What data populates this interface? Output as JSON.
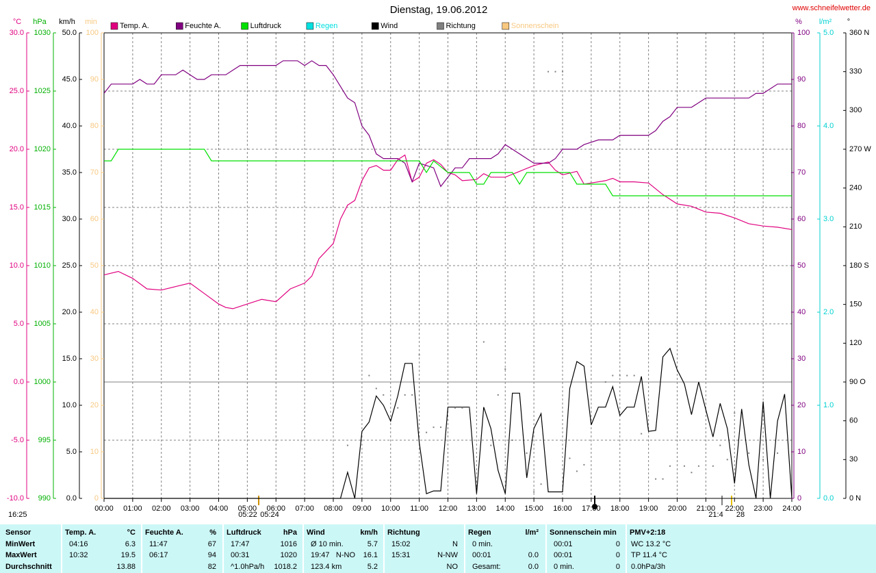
{
  "chart_data": {
    "type": "line",
    "title": "Dienstag, 19.06.2012",
    "source": "www.schneifelwetter.de",
    "grid": true,
    "xlim": [
      0,
      24
    ],
    "xticks": [
      {
        "value": 0,
        "label": "00:00"
      },
      {
        "value": 1,
        "label": "01:00"
      },
      {
        "value": 2,
        "label": "02:00"
      },
      {
        "value": 3,
        "label": "03:00"
      },
      {
        "value": 4,
        "label": "04:00"
      },
      {
        "value": 5,
        "label": "05:00"
      },
      {
        "value": 6,
        "label": "06:00"
      },
      {
        "value": 7,
        "label": "07:00"
      },
      {
        "value": 8,
        "label": "08:00"
      },
      {
        "value": 9,
        "label": "09:00"
      },
      {
        "value": 10,
        "label": "10:00"
      },
      {
        "value": 11,
        "label": "11:00"
      },
      {
        "value": 12,
        "label": "12:00"
      },
      {
        "value": 13,
        "label": "13:00"
      },
      {
        "value": 14,
        "label": "14:00"
      },
      {
        "value": 15,
        "label": "15:00"
      },
      {
        "value": 16,
        "label": "16:00"
      },
      {
        "value": 17,
        "label": "17:00"
      },
      {
        "value": 18,
        "label": "18:00"
      },
      {
        "value": 19,
        "label": "19:00"
      },
      {
        "value": 20,
        "label": "20:00"
      },
      {
        "value": 21,
        "label": "21:00"
      },
      {
        "value": 22,
        "label": "22:00"
      },
      {
        "value": 23,
        "label": "23:00"
      },
      {
        "value": 24,
        "label": "24:00"
      }
    ],
    "axes": [
      {
        "unit": "°C",
        "color": "#e0007f",
        "lim": [
          -10,
          30
        ],
        "ticks": [
          {
            "value": 30,
            "label": "30.0"
          },
          {
            "value": 25,
            "label": "25.0"
          },
          {
            "value": 20,
            "label": "20.0"
          },
          {
            "value": 15,
            "label": "15.0"
          },
          {
            "value": 10,
            "label": "10.0"
          },
          {
            "value": 5,
            "label": "5.0"
          },
          {
            "value": 0,
            "label": "0.0"
          },
          {
            "value": -5,
            "label": "-5.0"
          },
          {
            "value": -10,
            "label": "-10.0"
          }
        ]
      },
      {
        "unit": "hPa",
        "color": "#00b000",
        "lim": [
          990,
          1030
        ],
        "ticks": [
          1030,
          1025,
          1020,
          1015,
          1010,
          1005,
          1000,
          995,
          990
        ]
      },
      {
        "unit": "km/h",
        "color": "#000000",
        "lim": [
          0,
          50
        ],
        "ticks": [
          {
            "value": 50,
            "label": "50.0"
          },
          {
            "value": 45,
            "label": "45.0"
          },
          {
            "value": 40,
            "label": "40.0"
          },
          {
            "value": 35,
            "label": "35.0"
          },
          {
            "value": 30,
            "label": "30.0"
          },
          {
            "value": 25,
            "label": "25.0"
          },
          {
            "value": 20,
            "label": "20.0"
          },
          {
            "value": 15,
            "label": "15.0"
          },
          {
            "value": 10,
            "label": "10.0"
          },
          {
            "value": 5,
            "label": "5.0"
          },
          {
            "value": 0,
            "label": "0.0"
          }
        ]
      },
      {
        "unit": "min",
        "color": "#f8c880",
        "lim": [
          0,
          100
        ],
        "ticks": [
          100,
          90,
          80,
          70,
          60,
          50,
          40,
          30,
          20,
          10,
          0
        ]
      },
      {
        "unit": "%",
        "color": "#800080",
        "lim": [
          0,
          100
        ],
        "ticks": [
          100,
          90,
          80,
          70,
          60,
          50,
          40,
          30,
          20,
          10,
          0
        ]
      },
      {
        "unit": "l/m²",
        "color": "#00d0d0",
        "lim": [
          0,
          5
        ],
        "ticks": [
          {
            "value": 5,
            "label": "5.0"
          },
          {
            "value": 4,
            "label": "4.0"
          },
          {
            "value": 3,
            "label": "3.0"
          },
          {
            "value": 2,
            "label": "2.0"
          },
          {
            "value": 1,
            "label": "1.0"
          },
          {
            "value": 0,
            "label": "0.0"
          }
        ]
      },
      {
        "unit": "°",
        "color": "#000000",
        "lim": [
          0,
          360
        ],
        "ticks": [
          {
            "value": 360,
            "label": "360 N"
          },
          330,
          300,
          {
            "value": 270,
            "label": "270 W"
          },
          240,
          210,
          {
            "value": 180,
            "label": "180 S"
          },
          150,
          120,
          {
            "value": 90,
            "label": "90 O"
          },
          60,
          30,
          {
            "value": 0,
            "label": "0 N"
          }
        ]
      }
    ],
    "series": [
      {
        "name": "Temp. A.",
        "color": "#e0007f",
        "axis": 0,
        "type": "line",
        "x": [
          0,
          0.5,
          1,
          1.5,
          2,
          2.5,
          3,
          3.5,
          4,
          4.25,
          4.5,
          5,
          5.5,
          6,
          6.5,
          7,
          7.25,
          7.5,
          8,
          8.25,
          8.5,
          8.75,
          9,
          9.25,
          9.5,
          9.75,
          10,
          10.25,
          10.5,
          10.75,
          11,
          11.25,
          11.5,
          11.75,
          12,
          12.25,
          12.5,
          13,
          13.25,
          13.5,
          14,
          14.5,
          15,
          15.5,
          15.75,
          16,
          16.5,
          16.75,
          17,
          17.5,
          17.75,
          18,
          18.5,
          19,
          19.5,
          20,
          20.5,
          21,
          21.5,
          22,
          22.5,
          23,
          23.5,
          24
        ],
        "values": [
          9.2,
          9.5,
          8.9,
          8.0,
          7.9,
          8.2,
          8.5,
          7.6,
          6.7,
          6.4,
          6.3,
          6.7,
          7.1,
          6.9,
          8.0,
          8.5,
          9.1,
          10.6,
          11.9,
          14.0,
          15.2,
          15.6,
          17.3,
          18.4,
          18.6,
          18.2,
          18.2,
          19.1,
          19.5,
          17.2,
          17.6,
          18.8,
          19.1,
          18.7,
          18.0,
          17.8,
          17.3,
          17.4,
          17.9,
          17.6,
          17.6,
          18.1,
          18.6,
          18.9,
          18.2,
          17.8,
          18.1,
          17.0,
          17.1,
          17.3,
          17.5,
          17.2,
          17.2,
          17.1,
          16.1,
          15.3,
          15.1,
          14.6,
          14.5,
          14.1,
          13.6,
          13.4,
          13.3,
          13.1
        ]
      },
      {
        "name": "Feuchte A.",
        "color": "#800080",
        "axis": 4,
        "type": "line",
        "x": [
          0,
          0.25,
          1,
          1.25,
          1.5,
          1.75,
          2,
          2.5,
          2.75,
          3,
          3.25,
          3.5,
          3.75,
          4.25,
          4.5,
          4.75,
          6,
          6.25,
          6.75,
          7,
          7.25,
          7.5,
          7.75,
          8,
          8.5,
          8.75,
          9,
          9.25,
          9.5,
          9.75,
          10.25,
          10.5,
          10.75,
          11,
          11.5,
          11.75,
          12,
          12.25,
          12.5,
          12.75,
          13.5,
          13.75,
          14,
          14.25,
          14.75,
          15,
          15.5,
          15.75,
          16,
          16.5,
          16.75,
          17.25,
          17.75,
          18,
          19,
          19.25,
          19.5,
          19.75,
          20,
          20.5,
          20.75,
          21,
          22.5,
          22.75,
          23,
          23.25,
          23.5,
          24
        ],
        "values": [
          87,
          89,
          89,
          90,
          89,
          89,
          91,
          91,
          92,
          91,
          90,
          90,
          91,
          91,
          92,
          93,
          93,
          94,
          94,
          93,
          94,
          93,
          93,
          91,
          86,
          85,
          80,
          78,
          74,
          73,
          73,
          72,
          68,
          72,
          71,
          67,
          69,
          71,
          71,
          73,
          73,
          74,
          76,
          75,
          73,
          72,
          72,
          73,
          75,
          75,
          76,
          77,
          77,
          78,
          78,
          79,
          81,
          82,
          84,
          84,
          85,
          86,
          86,
          87,
          87,
          88,
          89,
          89
        ]
      },
      {
        "name": "Luftdruck",
        "color": "#00e000",
        "axis": 1,
        "type": "line",
        "x": [
          0,
          0.25,
          0.5,
          3.5,
          3.75,
          11,
          11.25,
          11.5,
          12,
          12.75,
          13,
          13.25,
          13.5,
          14.25,
          14.5,
          14.75,
          16.25,
          16.5,
          17.5,
          17.75,
          24
        ],
        "values": [
          1019,
          1019,
          1020,
          1020,
          1019,
          1019,
          1018,
          1019,
          1018,
          1018,
          1017,
          1017,
          1018,
          1018,
          1017,
          1018,
          1018,
          1017,
          1017,
          1016,
          1016
        ]
      },
      {
        "name": "Regen",
        "color": "#00e0e0",
        "axis": 5,
        "type": "line"
      },
      {
        "name": "Wind",
        "color": "#000000",
        "axis": 2,
        "type": "line",
        "x": [
          0,
          8.25,
          8.5,
          8.75,
          9,
          9.25,
          9.5,
          9.75,
          10,
          10.25,
          10.5,
          10.75,
          11,
          11.25,
          11.5,
          11.75,
          12,
          12.25,
          12.5,
          12.75,
          13,
          13.25,
          13.5,
          13.75,
          14,
          14.25,
          14.5,
          14.75,
          15,
          15.25,
          15.5,
          15.75,
          16,
          16.25,
          16.5,
          16.75,
          17,
          17.25,
          17.5,
          17.75,
          18,
          18.25,
          18.5,
          18.75,
          19,
          19.25,
          19.5,
          19.75,
          20,
          20.25,
          20.5,
          20.75,
          21,
          21.25,
          21.5,
          21.75,
          22,
          22.25,
          22.5,
          22.75,
          23,
          23.25,
          23.5,
          23.75,
          24
        ],
        "values": [
          0,
          0,
          2.8,
          0,
          7.2,
          8.2,
          11,
          10,
          8.3,
          11,
          14.5,
          14.5,
          6,
          0.5,
          0.8,
          0.8,
          9.8,
          9.8,
          9.8,
          9.8,
          0.5,
          9.8,
          7.5,
          3,
          0.5,
          11.3,
          11.3,
          2.2,
          7.5,
          9.1,
          0.7,
          0.7,
          0.7,
          11.8,
          14.7,
          14.2,
          7.9,
          9.8,
          9.8,
          12,
          8.9,
          9.8,
          9.8,
          13.1,
          7.2,
          7.3,
          15.2,
          16.1,
          13.8,
          12.3,
          9,
          12.5,
          9.5,
          6.6,
          10.2,
          7.5,
          1.6,
          9.6,
          3.6,
          0,
          10.4,
          0,
          8.3,
          11.2,
          0
        ]
      },
      {
        "name": "Richtung",
        "color": "#808080",
        "axis": 6,
        "type": "scatter",
        "x": [
          8.5,
          9.25,
          9.5,
          9.75,
          10.25,
          10.5,
          10.75,
          11,
          11.25,
          11.5,
          11.75,
          12.25,
          12.5,
          12.75,
          13.25,
          13.5,
          13.75,
          14,
          14.25,
          14.75,
          15,
          15.25,
          15.5,
          15.75,
          16,
          16.25,
          16.5,
          16.75,
          17.5,
          17.75,
          18,
          18.25,
          18.5,
          18.75,
          19.25,
          19.5,
          19.75,
          20.25,
          20.5,
          20.75,
          21.25,
          21.5,
          21.75,
          22,
          22.5,
          23,
          23.5
        ],
        "values": [
          41,
          95,
          85,
          80,
          70,
          80,
          80,
          111,
          51,
          55,
          55,
          70,
          70,
          70,
          121,
          41,
          80,
          100,
          45,
          35,
          5,
          11,
          330,
          330,
          330,
          31,
          21,
          26,
          90,
          95,
          95,
          95,
          95,
          50,
          15,
          15,
          25,
          25,
          20,
          25,
          25,
          41,
          30,
          66,
          35,
          30,
          35
        ]
      },
      {
        "name": "Sonnenschein",
        "color": "#f8c880",
        "axis": 3,
        "type": "line"
      }
    ],
    "annotations": [
      "16:25",
      "05:22",
      "05:24",
      "21:4",
      "28"
    ]
  },
  "table": {
    "header": [
      {
        "name": "Sensor"
      },
      {
        "name": "Temp. A.",
        "unit": "°C"
      },
      {
        "name": "Feuchte A.",
        "unit": "%"
      },
      {
        "name": "Luftdruck",
        "unit": "hPa"
      },
      {
        "name": "Wind",
        "unit": "km/h"
      },
      {
        "name": "Richtung"
      },
      {
        "name": "Regen",
        "unit": "l/m²"
      },
      {
        "name": "Sonnenschein min"
      },
      {
        "name": "PMV+2:18"
      }
    ],
    "rows": [
      {
        "label": "MinWert",
        "cells": [
          {
            "time": "04:16",
            "value": "6.3"
          },
          {
            "time": "11:47",
            "value": "67"
          },
          {
            "time": "17:47",
            "value": "1016"
          },
          {
            "time": "Ø 10 min.",
            "value": "5.7"
          },
          {
            "time": "15:02",
            "value": "N"
          },
          {
            "time": "0 min."
          },
          {
            "time": "00:01",
            "value": "0"
          },
          {
            "text": "WC 13.2 °C"
          }
        ]
      },
      {
        "label": "MaxWert",
        "cells": [
          {
            "time": "10:32",
            "value": "19.5"
          },
          {
            "time": "06:17",
            "value": "94"
          },
          {
            "time": "00:31",
            "value": "1020"
          },
          {
            "time": "19:47",
            "detail": "N-NO",
            "value": "16.1"
          },
          {
            "time": "15:31",
            "value": "N-NW"
          },
          {
            "time": "00:01",
            "value": "0.0"
          },
          {
            "time": "00:01",
            "value": "0"
          },
          {
            "text": "TP 11.4 °C"
          }
        ]
      },
      {
        "label": "Durchschnitt",
        "cells": [
          {
            "value": "13.88"
          },
          {
            "value": "82"
          },
          {
            "time": "^1.0hPa/h",
            "value": "1018.2"
          },
          {
            "time": "123.4 km",
            "value": "5.2"
          },
          {
            "value": "NO"
          },
          {
            "time": "Gesamt:",
            "value": "0.0"
          },
          {
            "time": "0 min.",
            "value": "0"
          },
          {
            "text": "0.0hPa/3h"
          }
        ]
      }
    ]
  }
}
